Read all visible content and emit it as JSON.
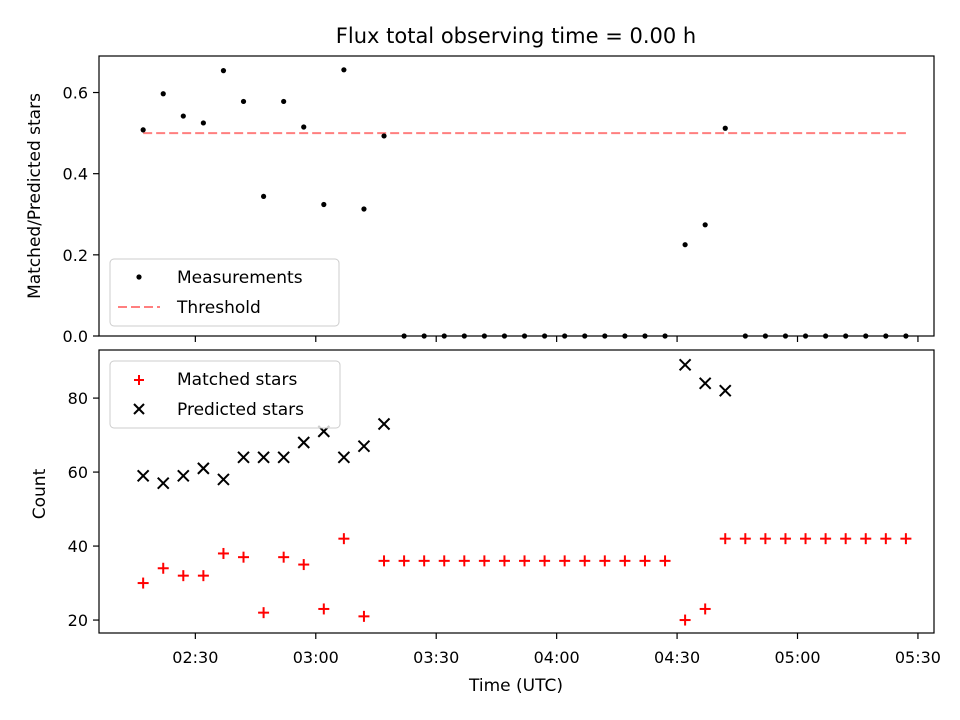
{
  "title": "Flux total observing time = 0.00 h",
  "chart_data": [
    {
      "type": "scatter",
      "title": "Flux total observing time = 0.00 h",
      "xlabel": "",
      "ylabel": "Matched/Predicted stars",
      "ylim": [
        0,
        0.69
      ],
      "yticks": [
        0.0,
        0.2,
        0.4,
        0.6
      ],
      "ytick_labels": [
        "0.0",
        "0.2",
        "0.4",
        "0.6"
      ],
      "legend": {
        "placement": "lower-left"
      },
      "series": [
        {
          "name": "Measurements",
          "kind": "scatter",
          "marker": "dot",
          "color": "#000000",
          "x": [
            "02:17",
            "02:22",
            "02:27",
            "02:32",
            "02:37",
            "02:42",
            "02:47",
            "02:52",
            "02:57",
            "03:02",
            "03:07",
            "03:12",
            "03:17",
            "03:22",
            "03:27",
            "03:32",
            "03:37",
            "03:42",
            "03:47",
            "03:52",
            "03:57",
            "04:02",
            "04:07",
            "04:12",
            "04:17",
            "04:22",
            "04:27",
            "04:32",
            "04:37",
            "04:42",
            "04:47",
            "04:52",
            "04:57",
            "05:02",
            "05:07",
            "05:12",
            "05:17",
            "05:22",
            "05:27"
          ],
          "y": [
            0.508,
            0.597,
            0.542,
            0.525,
            0.654,
            0.578,
            0.344,
            0.578,
            0.515,
            0.324,
            0.656,
            0.313,
            0.493,
            0,
            0,
            0,
            0,
            0,
            0,
            0,
            0,
            0,
            0,
            0,
            0,
            0,
            0,
            0.225,
            0.274,
            0.512,
            0,
            0,
            0,
            0,
            0,
            0,
            0,
            0,
            0
          ]
        },
        {
          "name": "Threshold",
          "kind": "line",
          "style": "dashed",
          "color": "#ff7f7f",
          "x": [
            "02:17",
            "05:27"
          ],
          "y": [
            0.5,
            0.5
          ]
        }
      ]
    },
    {
      "type": "scatter",
      "xlabel": "Time (UTC)",
      "ylabel": "Count",
      "ylim": [
        16.5,
        93
      ],
      "yticks": [
        20,
        40,
        60,
        80
      ],
      "ytick_labels": [
        "20",
        "40",
        "60",
        "80"
      ],
      "xlim": [
        "02:06",
        "05:34"
      ],
      "xticks": [
        "02:30",
        "03:00",
        "03:30",
        "04:00",
        "04:30",
        "05:00",
        "05:30"
      ],
      "legend": {
        "placement": "upper-left"
      },
      "series": [
        {
          "name": "Matched stars",
          "kind": "scatter",
          "marker": "plus",
          "color": "#ff0000",
          "x": [
            "02:17",
            "02:22",
            "02:27",
            "02:32",
            "02:37",
            "02:42",
            "02:47",
            "02:52",
            "02:57",
            "03:02",
            "03:07",
            "03:12",
            "03:17",
            "03:22",
            "03:27",
            "03:32",
            "03:37",
            "03:42",
            "03:47",
            "03:52",
            "03:57",
            "04:02",
            "04:07",
            "04:12",
            "04:17",
            "04:22",
            "04:27",
            "04:32",
            "04:37",
            "04:42",
            "04:47",
            "04:52",
            "04:57",
            "05:02",
            "05:07",
            "05:12",
            "05:17",
            "05:22",
            "05:27"
          ],
          "y": [
            30,
            34,
            32,
            32,
            38,
            37,
            22,
            37,
            35,
            23,
            42,
            21,
            36,
            36,
            36,
            36,
            36,
            36,
            36,
            36,
            36,
            36,
            36,
            36,
            36,
            36,
            36,
            20,
            23,
            42,
            42,
            42,
            42,
            42,
            42,
            42,
            42,
            42,
            42
          ]
        },
        {
          "name": "Predicted stars",
          "kind": "scatter",
          "marker": "x",
          "color": "#000000",
          "x": [
            "02:17",
            "02:22",
            "02:27",
            "02:32",
            "02:37",
            "02:42",
            "02:47",
            "02:52",
            "02:57",
            "03:02",
            "03:07",
            "03:12",
            "03:17",
            "04:32",
            "04:37",
            "04:42"
          ],
          "y": [
            59,
            57,
            59,
            61,
            58,
            64,
            64,
            64,
            68,
            71,
            64,
            67,
            73,
            89,
            84,
            82
          ]
        }
      ]
    }
  ]
}
